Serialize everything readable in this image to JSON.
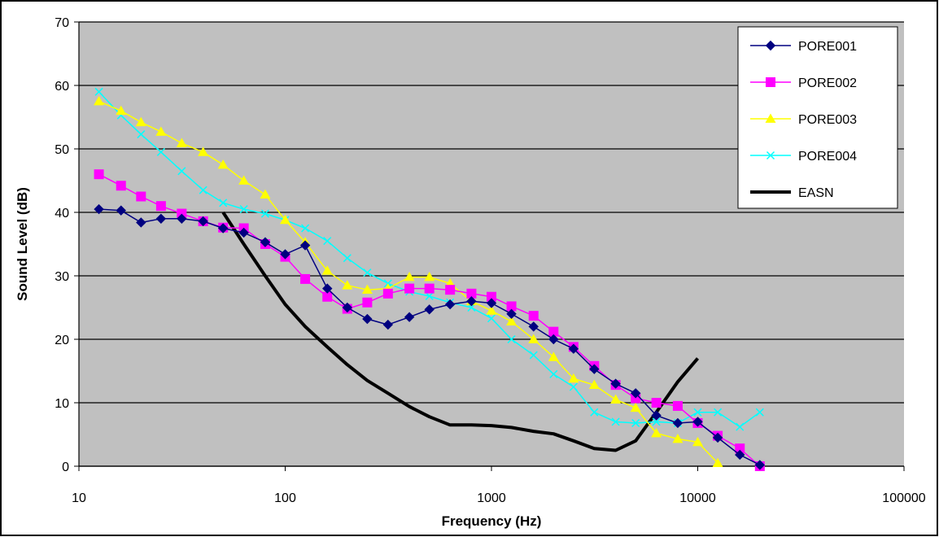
{
  "chart_data": {
    "type": "line",
    "title": "",
    "xlabel": "Frequency (Hz)",
    "ylabel": "Sound Level (dB)",
    "x_scale": "log",
    "xlim": [
      10,
      100000
    ],
    "ylim": [
      0,
      70
    ],
    "x_ticks": [
      "10",
      "100",
      "1000",
      "10000",
      "100000"
    ],
    "y_ticks": [
      "0",
      "10",
      "20",
      "30",
      "40",
      "50",
      "60",
      "70"
    ],
    "grid": "horizontal",
    "legend_position": "top-right",
    "plot_background": "#c0c0c0",
    "series": [
      {
        "name": "PORE001",
        "color": "#000080",
        "marker": "diamond",
        "x": [
          12.5,
          16,
          20,
          25,
          31.5,
          40,
          50,
          63,
          80,
          100,
          125,
          160,
          200,
          250,
          315,
          400,
          500,
          630,
          800,
          1000,
          1250,
          1600,
          2000,
          2500,
          3150,
          4000,
          5000,
          6300,
          8000,
          10000,
          12500,
          16000,
          20000
        ],
        "y": [
          40.5,
          40.3,
          38.4,
          39.0,
          39.0,
          38.6,
          37.5,
          36.8,
          35.3,
          33.4,
          34.8,
          28.0,
          25.0,
          23.2,
          22.3,
          23.5,
          24.7,
          25.5,
          26.0,
          25.7,
          24.0,
          22.0,
          20.0,
          18.5,
          15.3,
          13.0,
          11.5,
          8.0,
          6.8,
          7.0,
          4.5,
          1.8,
          0.2
        ]
      },
      {
        "name": "PORE002",
        "color": "#ff00ff",
        "marker": "square",
        "x": [
          12.5,
          16,
          20,
          25,
          31.5,
          40,
          50,
          63,
          80,
          100,
          125,
          160,
          200,
          250,
          315,
          400,
          500,
          630,
          800,
          1000,
          1250,
          1600,
          2000,
          2500,
          3150,
          4000,
          5000,
          6300,
          8000,
          10000,
          12500,
          16000,
          20000
        ],
        "y": [
          46.0,
          44.2,
          42.5,
          41.0,
          39.8,
          38.6,
          37.6,
          37.5,
          35.0,
          33.0,
          29.5,
          26.7,
          24.8,
          25.8,
          27.2,
          28.0,
          28.0,
          27.8,
          27.2,
          26.7,
          25.2,
          23.7,
          21.2,
          18.8,
          15.8,
          12.8,
          10.7,
          10.0,
          9.5,
          6.8,
          4.8,
          2.8,
          0.0
        ]
      },
      {
        "name": "PORE003",
        "color": "#ffff00",
        "marker": "triangle",
        "x": [
          12.5,
          16,
          20,
          25,
          31.5,
          40,
          50,
          63,
          80,
          100,
          125,
          160,
          200,
          250,
          315,
          400,
          500,
          630,
          800,
          1000,
          1250,
          1600,
          2000,
          2500,
          3150,
          4000,
          5000,
          6300,
          8000,
          10000,
          12500
        ],
        "y": [
          57.5,
          56.0,
          54.2,
          52.7,
          50.9,
          49.5,
          47.5,
          45.0,
          42.8,
          38.8,
          35.3,
          30.8,
          28.5,
          27.8,
          28.0,
          29.8,
          29.8,
          28.8,
          26.0,
          24.5,
          22.8,
          20.0,
          17.2,
          13.8,
          12.8,
          10.5,
          9.2,
          5.2,
          4.3,
          3.8,
          0.5
        ]
      },
      {
        "name": "PORE004",
        "color": "#00ffff",
        "marker": "cross",
        "x": [
          12.5,
          16,
          20,
          25,
          31.5,
          40,
          50,
          63,
          80,
          100,
          125,
          160,
          200,
          250,
          315,
          400,
          500,
          630,
          800,
          1000,
          1250,
          1600,
          2000,
          2500,
          3150,
          4000,
          5000,
          6300,
          8000,
          10000,
          12500,
          16000,
          20000
        ],
        "y": [
          59.0,
          55.3,
          52.3,
          49.5,
          46.5,
          43.5,
          41.5,
          40.5,
          39.8,
          38.8,
          37.5,
          35.5,
          32.8,
          30.5,
          28.8,
          27.5,
          26.8,
          25.8,
          25.0,
          23.3,
          20.0,
          17.5,
          14.5,
          12.5,
          8.5,
          7.0,
          6.8,
          7.0,
          6.8,
          8.5,
          8.5,
          6.2,
          8.5
        ]
      },
      {
        "name": "EASN",
        "color": "#000000",
        "marker": "none",
        "x": [
          50,
          63,
          80,
          100,
          125,
          160,
          200,
          250,
          315,
          400,
          500,
          630,
          800,
          1000,
          1250,
          1600,
          2000,
          2500,
          3150,
          4000,
          5000,
          6300,
          8000,
          10000
        ],
        "y": [
          40.0,
          35.0,
          30.0,
          25.5,
          22.0,
          18.8,
          16.0,
          13.5,
          11.5,
          9.4,
          7.8,
          6.5,
          6.5,
          6.4,
          6.1,
          5.5,
          5.1,
          4.0,
          2.8,
          2.5,
          4.0,
          8.5,
          13.3,
          17.0
        ]
      }
    ]
  }
}
